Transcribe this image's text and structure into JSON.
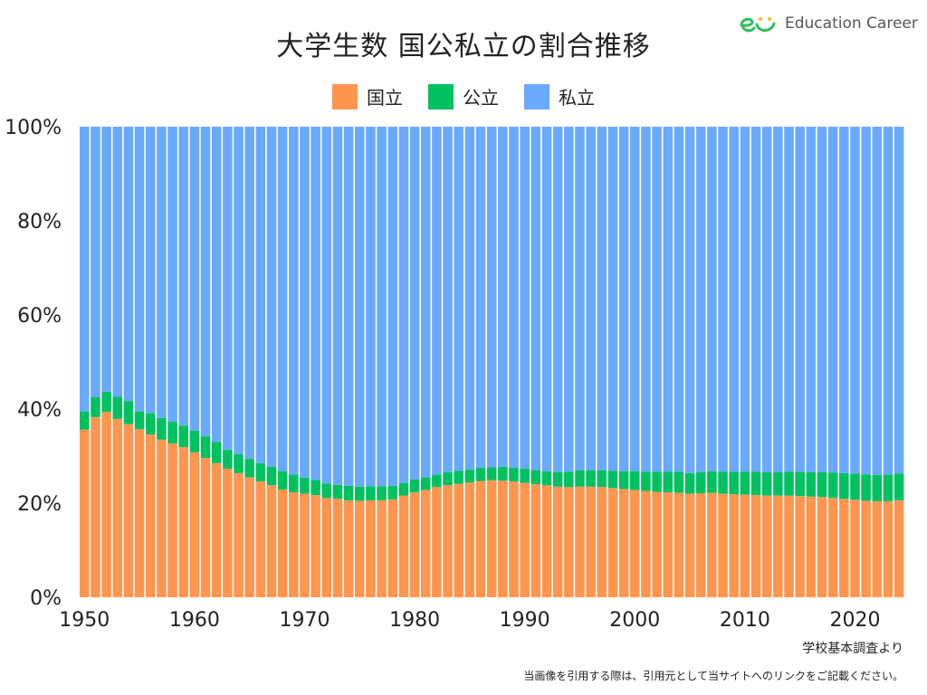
{
  "title": "大学生数 国公私立の割合推移",
  "brand": {
    "name": "Education Career",
    "colors": [
      "#2ebf5a",
      "#f2c12e"
    ]
  },
  "legend": [
    {
      "label": "国立",
      "color": "#FF9650"
    },
    {
      "label": "公立",
      "color": "#00C060"
    },
    {
      "label": "私立",
      "color": "#6AAAFE"
    }
  ],
  "source": "学校基本調査より",
  "notice": "当画像を引用する際は、引用元として当サイトへのリンクをご記載ください。",
  "chart_data": {
    "type": "bar",
    "stacked": true,
    "normalized": true,
    "x": [
      1950,
      1951,
      1952,
      1953,
      1954,
      1955,
      1956,
      1957,
      1958,
      1959,
      1960,
      1961,
      1962,
      1963,
      1964,
      1965,
      1966,
      1967,
      1968,
      1969,
      1970,
      1971,
      1972,
      1973,
      1974,
      1975,
      1976,
      1977,
      1978,
      1979,
      1980,
      1981,
      1982,
      1983,
      1984,
      1985,
      1986,
      1987,
      1988,
      1989,
      1990,
      1991,
      1992,
      1993,
      1994,
      1995,
      1996,
      1997,
      1998,
      1999,
      2000,
      2001,
      2002,
      2003,
      2004,
      2005,
      2006,
      2007,
      2008,
      2009,
      2010,
      2011,
      2012,
      2013,
      2014,
      2015,
      2016,
      2017,
      2018,
      2019,
      2020,
      2021,
      2022,
      2023,
      2024
    ],
    "series": [
      {
        "name": "国立",
        "color": "#FF9650",
        "values": [
          35.6,
          38.3,
          39.4,
          37.9,
          36.8,
          35.7,
          34.6,
          33.5,
          32.7,
          31.9,
          30.8,
          29.6,
          28.5,
          27.3,
          26.4,
          25.5,
          24.6,
          23.8,
          22.9,
          22.3,
          22.0,
          21.7,
          21.1,
          20.9,
          20.6,
          20.5,
          20.6,
          20.6,
          20.8,
          21.6,
          22.3,
          22.8,
          23.4,
          23.8,
          24.1,
          24.4,
          24.7,
          24.9,
          24.8,
          24.6,
          24.3,
          24.0,
          23.8,
          23.5,
          23.4,
          23.5,
          23.5,
          23.4,
          23.2,
          23.0,
          22.8,
          22.6,
          22.4,
          22.3,
          22.2,
          22.0,
          22.1,
          22.2,
          22.0,
          21.9,
          21.8,
          21.7,
          21.6,
          21.6,
          21.6,
          21.5,
          21.4,
          21.3,
          21.1,
          20.9,
          20.7,
          20.5,
          20.4,
          20.4,
          20.6
        ]
      },
      {
        "name": "公立",
        "color": "#00C060",
        "values": [
          3.9,
          4.2,
          4.3,
          4.7,
          4.9,
          3.8,
          4.5,
          4.6,
          4.6,
          4.6,
          4.6,
          4.6,
          4.5,
          4.1,
          4.0,
          3.9,
          3.9,
          3.9,
          3.9,
          3.8,
          3.4,
          3.2,
          3.1,
          3.0,
          3.1,
          3.0,
          3.0,
          3.0,
          2.9,
          2.7,
          2.7,
          2.7,
          2.7,
          2.8,
          2.8,
          2.7,
          2.8,
          2.7,
          2.9,
          2.9,
          3.0,
          3.0,
          3.0,
          3.1,
          3.3,
          3.5,
          3.5,
          3.6,
          3.7,
          3.8,
          4.0,
          4.1,
          4.3,
          4.4,
          4.5,
          4.4,
          4.5,
          4.6,
          4.7,
          4.8,
          4.9,
          5.0,
          5.0,
          5.0,
          5.1,
          5.2,
          5.2,
          5.3,
          5.4,
          5.5,
          5.6,
          5.6,
          5.6,
          5.7,
          5.7
        ]
      },
      {
        "name": "私立",
        "color": "#6AAAFE",
        "values": [
          60.5,
          57.5,
          56.3,
          57.4,
          58.3,
          60.5,
          60.9,
          61.9,
          62.7,
          63.5,
          64.6,
          65.8,
          67.0,
          68.6,
          69.6,
          70.6,
          71.5,
          72.3,
          73.2,
          73.9,
          74.6,
          75.1,
          75.8,
          76.1,
          76.3,
          76.5,
          76.4,
          76.4,
          76.3,
          75.7,
          75.0,
          74.5,
          73.9,
          73.4,
          73.1,
          72.9,
          72.5,
          72.4,
          72.3,
          72.5,
          72.7,
          73.0,
          73.2,
          73.4,
          73.3,
          73.0,
          73.0,
          73.0,
          73.1,
          73.2,
          73.2,
          73.3,
          73.3,
          73.3,
          73.3,
          73.6,
          73.4,
          73.2,
          73.3,
          73.3,
          73.3,
          73.3,
          73.4,
          73.4,
          73.3,
          73.3,
          73.4,
          73.4,
          73.5,
          73.6,
          73.7,
          73.9,
          74.0,
          73.9,
          73.7
        ]
      }
    ],
    "y_ticks": [
      "0%",
      "20%",
      "40%",
      "60%",
      "80%",
      "100%"
    ],
    "x_ticks": [
      "1950",
      "1960",
      "1970",
      "1980",
      "1990",
      "2000",
      "2010",
      "2020"
    ],
    "ylim": [
      0,
      100
    ],
    "grid": false,
    "legend_position": "top-center"
  }
}
